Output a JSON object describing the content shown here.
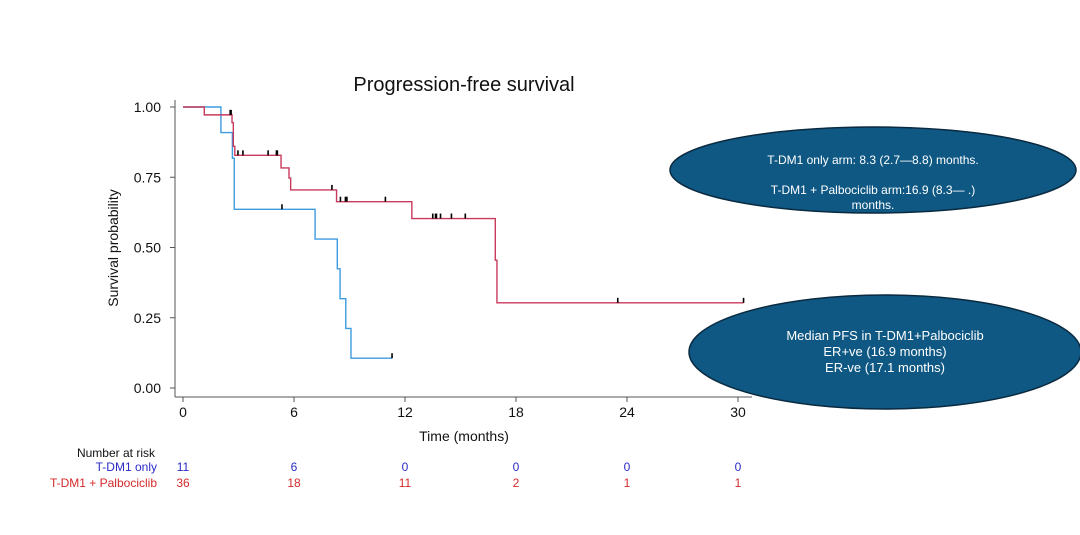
{
  "chart_data": {
    "type": "line",
    "subtype": "kaplan-meier step",
    "title": "Progression-free survival",
    "xlabel": "Time (months)",
    "ylabel": "Survival probability",
    "xlim": [
      0,
      30.5
    ],
    "ylim": [
      0,
      1
    ],
    "xticks": [
      0,
      6,
      12,
      18,
      24,
      30
    ],
    "yticks": [
      0,
      0.25,
      0.5,
      0.75,
      1.0
    ],
    "ytick_labels": [
      "0.00",
      "0.25",
      "0.50",
      "0.75",
      "1.00"
    ],
    "grid": false,
    "series": [
      {
        "name": "T-DM1 only",
        "color": "#3d9be0",
        "steps": [
          [
            0,
            1.0
          ],
          [
            2.05,
            0.909
          ],
          [
            2.67,
            0.818
          ],
          [
            2.77,
            0.636
          ],
          [
            7.14,
            0.53
          ],
          [
            8.34,
            0.424
          ],
          [
            8.49,
            0.318
          ],
          [
            8.8,
            0.212
          ],
          [
            9.08,
            0.106
          ]
        ],
        "end": 11.3,
        "censored": [
          [
            5.35,
            0.636
          ],
          [
            11.3,
            0.106
          ]
        ]
      },
      {
        "name": "T-DM1 + Palbociclib",
        "color": "#c83a5c",
        "steps": [
          [
            0,
            1.0
          ],
          [
            1.15,
            0.972
          ],
          [
            2.65,
            0.944
          ],
          [
            2.72,
            0.86
          ],
          [
            2.8,
            0.828
          ],
          [
            5.3,
            0.783
          ],
          [
            5.73,
            0.747
          ],
          [
            5.82,
            0.705
          ],
          [
            8.3,
            0.663
          ],
          [
            12.37,
            0.603
          ],
          [
            16.88,
            0.455
          ],
          [
            16.97,
            0.303
          ]
        ],
        "end": 30.3,
        "censored": [
          [
            2.55,
            0.972
          ],
          [
            2.6,
            0.972
          ],
          [
            2.97,
            0.828
          ],
          [
            3.24,
            0.828
          ],
          [
            4.6,
            0.828
          ],
          [
            5.05,
            0.828
          ],
          [
            5.1,
            0.828
          ],
          [
            8.05,
            0.705
          ],
          [
            8.51,
            0.663
          ],
          [
            8.78,
            0.663
          ],
          [
            8.86,
            0.663
          ],
          [
            10.94,
            0.663
          ],
          [
            13.5,
            0.603
          ],
          [
            13.65,
            0.603
          ],
          [
            13.7,
            0.603
          ],
          [
            13.92,
            0.603
          ],
          [
            14.51,
            0.603
          ],
          [
            15.26,
            0.603
          ],
          [
            23.5,
            0.303
          ],
          [
            30.3,
            0.303
          ]
        ]
      }
    ],
    "risk_table": {
      "title": "Number at risk",
      "times": [
        0,
        6,
        12,
        18,
        24,
        30
      ],
      "rows": [
        {
          "label": "T-DM1 only",
          "color": "#2a2ac8",
          "values": [
            "11",
            "6",
            "0",
            "0",
            "0",
            "0"
          ]
        },
        {
          "label": "T-DM1 + Palbociclib",
          "color": "#d42a2a",
          "values": [
            "36",
            "18",
            "11",
            "2",
            "1",
            "1"
          ]
        }
      ]
    },
    "annotations": [
      {
        "lines": [
          "T-DM1 only arm: 8.3 (2.7—8.8) months.",
          "",
          "T-DM1 + Palbociclib arm:16.9 (8.3—  .)",
          "months."
        ]
      },
      {
        "lines": [
          "Median PFS in T-DM1+Palbociclib",
          "ER+ve (16.9 months)",
          "ER-ve (17.1 months)"
        ]
      }
    ],
    "annotation_fill": "#0f5884"
  }
}
